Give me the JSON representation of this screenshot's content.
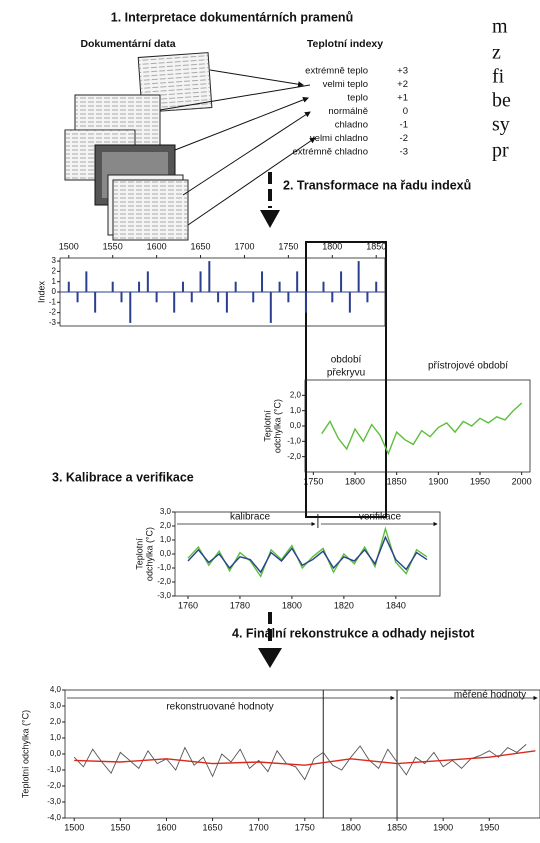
{
  "text": {
    "side": [
      "m",
      "z",
      "fi",
      "be",
      "sy",
      "pr"
    ],
    "step1": "1. Interpretace dokumentárních pramenů",
    "doc_data": "Dokumentární data",
    "indices_head": "Teplotní indexy",
    "indices": [
      [
        "extrémně teplo",
        "+3"
      ],
      [
        "velmi teplo",
        "+2"
      ],
      [
        "teplo",
        "+1"
      ],
      [
        "normálně",
        "0"
      ],
      [
        "chladno",
        "-1"
      ],
      [
        "velmi chladno",
        "-2"
      ],
      [
        "extrémně chladno",
        "-3"
      ]
    ],
    "step2": "2. Transformace na řadu indexů",
    "step3": "3. Kalibrace a verifikace",
    "step4": "4. Finální rekonstrukce a odhady nejistot"
  },
  "chart_data": [
    {
      "type": "bar",
      "ylabel": "Index",
      "xlim": [
        1490,
        1860
      ],
      "xticks": [
        1500,
        1550,
        1600,
        1650,
        1700,
        1750,
        1800,
        1850
      ],
      "ylim": [
        -3.3,
        3.3
      ],
      "yticks": [
        3,
        2,
        1,
        0,
        -1,
        -2,
        -3
      ],
      "series": [
        {
          "color": "#2b3f8f",
          "x": [
            1500,
            1510,
            1520,
            1530,
            1540,
            1550,
            1560,
            1570,
            1580,
            1590,
            1600,
            1610,
            1620,
            1630,
            1640,
            1650,
            1660,
            1670,
            1680,
            1690,
            1700,
            1710,
            1720,
            1730,
            1740,
            1750,
            1760,
            1770,
            1780,
            1790,
            1800,
            1810,
            1820,
            1830,
            1840,
            1850
          ],
          "values": [
            1,
            -1,
            2,
            -2,
            0,
            1,
            -1,
            -3,
            1,
            2,
            -1,
            0,
            -2,
            1,
            -1,
            2,
            3,
            -1,
            -2,
            1,
            0,
            -1,
            2,
            -3,
            1,
            -1,
            2,
            -2,
            0,
            1,
            -1,
            2,
            -2,
            3,
            -1,
            1
          ]
        }
      ]
    },
    {
      "type": "line",
      "ylabel": [
        "Teplotní",
        "odchylka (°C)"
      ],
      "annotations": [
        "období",
        "překryvu",
        "přístrojové období"
      ],
      "xlim": [
        1740,
        2010
      ],
      "xticks": [
        1750,
        1800,
        1850,
        1900,
        1950,
        2000
      ],
      "ylim": [
        -3,
        3
      ],
      "yticks": [
        {
          "value": 2,
          "label": "2,0"
        },
        {
          "value": 1,
          "label": "1,0"
        },
        {
          "value": 0,
          "label": "0,0"
        },
        {
          "value": -1,
          "label": "-1,0"
        },
        {
          "value": -2,
          "label": "-2,0"
        }
      ],
      "series": [
        {
          "color": "#5cbf3c",
          "x": [
            1760,
            1770,
            1780,
            1790,
            1800,
            1810,
            1820,
            1830,
            1840,
            1850,
            1860,
            1870,
            1880,
            1890,
            1900,
            1910,
            1920,
            1930,
            1940,
            1950,
            1960,
            1970,
            1980,
            1990,
            2000
          ],
          "values": [
            -0.5,
            0.3,
            -0.8,
            -1.5,
            -0.2,
            -1.0,
            0.1,
            -0.6,
            -1.8,
            -0.4,
            -0.9,
            -1.2,
            -0.3,
            -0.7,
            -0.1,
            0.2,
            -0.4,
            0.3,
            0.0,
            0.5,
            0.2,
            0.6,
            0.4,
            1.0,
            1.5
          ]
        }
      ]
    },
    {
      "type": "line",
      "ylabel": [
        "Teplotní",
        "odchylka (°C)"
      ],
      "annotations": [
        "kalibrace",
        "verifikace"
      ],
      "split": 1810,
      "xlim": [
        1755,
        1857
      ],
      "xticks": [
        1760,
        1780,
        1800,
        1820,
        1840
      ],
      "ylim": [
        -3,
        3
      ],
      "yticks": [
        {
          "value": 3,
          "label": "3,0"
        },
        {
          "value": 2,
          "label": "2,0"
        },
        {
          "value": 1,
          "label": "1,0"
        },
        {
          "value": 0,
          "label": "0,0"
        },
        {
          "value": -1,
          "label": "-1,0"
        },
        {
          "value": -2,
          "label": "-2,0"
        },
        {
          "value": -3,
          "label": "-3,0"
        }
      ],
      "series": [
        {
          "color": "#5cbf3c",
          "x": [
            1760,
            1764,
            1768,
            1772,
            1776,
            1780,
            1784,
            1788,
            1792,
            1796,
            1800,
            1804,
            1808,
            1812,
            1816,
            1820,
            1824,
            1828,
            1832,
            1836,
            1840,
            1844,
            1848,
            1852
          ],
          "values": [
            -0.3,
            0.5,
            -0.8,
            0.2,
            -1.2,
            0.1,
            -0.5,
            -1.6,
            0.3,
            -0.4,
            0.6,
            -1.0,
            -0.2,
            0.4,
            -1.3,
            0.0,
            -0.7,
            0.5,
            -0.9,
            1.8,
            -0.6,
            -1.4,
            0.3,
            -0.2
          ]
        },
        {
          "color": "#2b3f8f",
          "x": [
            1760,
            1764,
            1768,
            1772,
            1776,
            1780,
            1784,
            1788,
            1792,
            1796,
            1800,
            1804,
            1808,
            1812,
            1816,
            1820,
            1824,
            1828,
            1832,
            1836,
            1840,
            1844,
            1848,
            1852
          ],
          "values": [
            -0.5,
            0.3,
            -0.6,
            0.0,
            -1.0,
            -0.2,
            -0.4,
            -1.3,
            0.1,
            -0.5,
            0.4,
            -0.8,
            -0.4,
            0.2,
            -1.0,
            -0.2,
            -0.5,
            0.3,
            -0.7,
            1.2,
            -0.4,
            -1.1,
            0.1,
            -0.4
          ]
        }
      ]
    },
    {
      "type": "line",
      "ylabel": "Teplotní odchylka (°C)",
      "annotations": [
        "rekonstruované hodnoty",
        "měřené hodnoty"
      ],
      "vlines": [
        1770,
        1850
      ],
      "xlim": [
        1490,
        2005
      ],
      "xticks": [
        1500,
        1550,
        1600,
        1650,
        1700,
        1750,
        1800,
        1850,
        1900,
        1950
      ],
      "ylim": [
        -4,
        4
      ],
      "yticks": [
        {
          "value": 4,
          "label": "4,0"
        },
        {
          "value": 3,
          "label": "3,0"
        },
        {
          "value": 2,
          "label": "2,0"
        },
        {
          "value": 1,
          "label": "1,0"
        },
        {
          "value": 0,
          "label": "0,0"
        },
        {
          "value": -1,
          "label": "-1,0"
        },
        {
          "value": -2,
          "label": "-2,0"
        },
        {
          "value": -3,
          "label": "-3,0"
        },
        {
          "value": -4,
          "label": "-4,0"
        }
      ],
      "series": [
        {
          "color": "#555555",
          "x": [
            1500,
            1510,
            1520,
            1530,
            1540,
            1550,
            1560,
            1570,
            1580,
            1590,
            1600,
            1610,
            1620,
            1630,
            1640,
            1650,
            1660,
            1670,
            1680,
            1690,
            1700,
            1710,
            1720,
            1730,
            1740,
            1750,
            1760,
            1770,
            1780,
            1790,
            1800,
            1810,
            1820,
            1830,
            1840,
            1850,
            1860,
            1870,
            1880,
            1890,
            1900,
            1910,
            1920,
            1930,
            1940,
            1950,
            1960,
            1970,
            1980,
            1990
          ],
          "values": [
            -0.2,
            -0.8,
            0.3,
            -0.5,
            -1.2,
            0.1,
            -0.4,
            -0.9,
            0.2,
            -0.6,
            -0.3,
            -1.0,
            0.4,
            -0.7,
            -0.2,
            -1.4,
            0.0,
            -0.5,
            0.3,
            -0.9,
            -0.4,
            -1.1,
            0.2,
            -0.6,
            -0.8,
            -1.6,
            -0.3,
            0.1,
            -0.7,
            -1.0,
            -0.2,
            0.5,
            -0.4,
            -0.9,
            0.3,
            -0.5,
            -1.3,
            -0.2,
            -0.6,
            0.1,
            -0.8,
            -0.4,
            -0.9,
            -0.3,
            -0.1,
            0.2,
            -0.2,
            0.4,
            0.1,
            0.6
          ]
        },
        {
          "color": "#d9291c",
          "x": [
            1500,
            1550,
            1600,
            1650,
            1700,
            1750,
            1800,
            1850,
            1900,
            1950,
            2000
          ],
          "values": [
            -0.4,
            -0.5,
            -0.3,
            -0.6,
            -0.5,
            -0.7,
            -0.3,
            -0.6,
            -0.4,
            -0.2,
            0.2
          ]
        }
      ]
    }
  ]
}
